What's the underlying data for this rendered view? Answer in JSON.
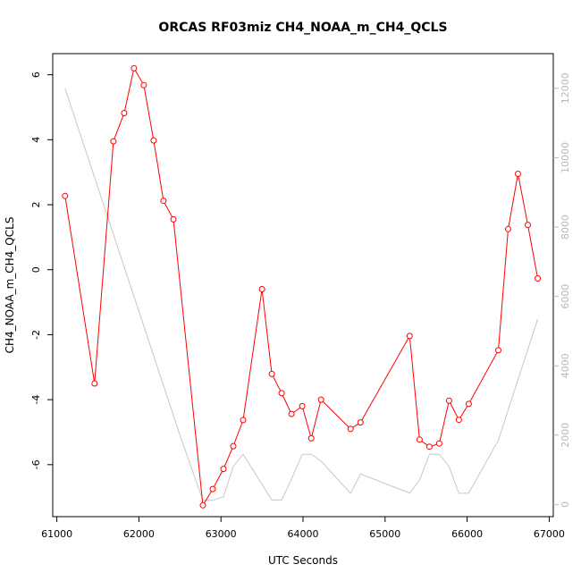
{
  "chart_data": {
    "type": "line",
    "title": "ORCAS RF03miz CH4_NOAA_m_CH4_QCLS",
    "xlabel": "UTC Seconds",
    "ylabel": "CH4_NOAA_m_CH4_QCLS",
    "xlim": [
      60950,
      67050
    ],
    "ylim": [
      -7.6,
      6.65
    ],
    "y2lim": [
      -350,
      13000
    ],
    "x_ticks": [
      61000,
      62000,
      63000,
      64000,
      65000,
      66000,
      67000
    ],
    "y_ticks": [
      -6,
      -4,
      -2,
      0,
      2,
      4,
      6
    ],
    "y2_ticks": [
      0,
      2000,
      4000,
      6000,
      8000,
      10000,
      12000
    ],
    "grid": false,
    "legend": "none",
    "series": [
      {
        "color": "#ff0000",
        "axis": "left",
        "markers": "open-circle",
        "x": [
          61100,
          61460,
          61690,
          61820,
          61940,
          62060,
          62180,
          62300,
          62420,
          62780,
          62900,
          63030,
          63150,
          63270,
          63500,
          63620,
          63740,
          63860,
          63990,
          64100,
          64220,
          64580,
          64700,
          65300,
          65420,
          65540,
          65660,
          65780,
          65900,
          66020,
          66380,
          66500,
          66620,
          66740,
          66860
        ],
        "y": [
          2.27,
          -3.5,
          3.95,
          4.82,
          6.2,
          5.68,
          3.98,
          2.12,
          1.55,
          -7.25,
          -6.75,
          -6.13,
          -5.43,
          -4.63,
          -0.6,
          -3.21,
          -3.8,
          -4.44,
          -4.2,
          -5.19,
          -4.0,
          -4.9,
          -4.7,
          -2.04,
          -5.23,
          -5.45,
          -5.35,
          -4.03,
          -4.62,
          -4.13,
          -2.48,
          1.25,
          2.95,
          1.38,
          -0.27
        ]
      },
      {
        "color": "#c8c8c8",
        "axis": "right",
        "markers": "none",
        "x": [
          61100,
          62500,
          62780,
          62900,
          63030,
          63150,
          63270,
          63620,
          63740,
          63860,
          63990,
          64100,
          64220,
          64580,
          64700,
          65300,
          65420,
          65540,
          65660,
          65780,
          65900,
          66020,
          66380,
          66860
        ],
        "y": [
          12000,
          2000,
          120,
          120,
          220,
          1100,
          1450,
          130,
          130,
          730,
          1450,
          1450,
          1250,
          320,
          880,
          330,
          700,
          1450,
          1450,
          1100,
          320,
          330,
          1850,
          5350
        ]
      }
    ]
  }
}
